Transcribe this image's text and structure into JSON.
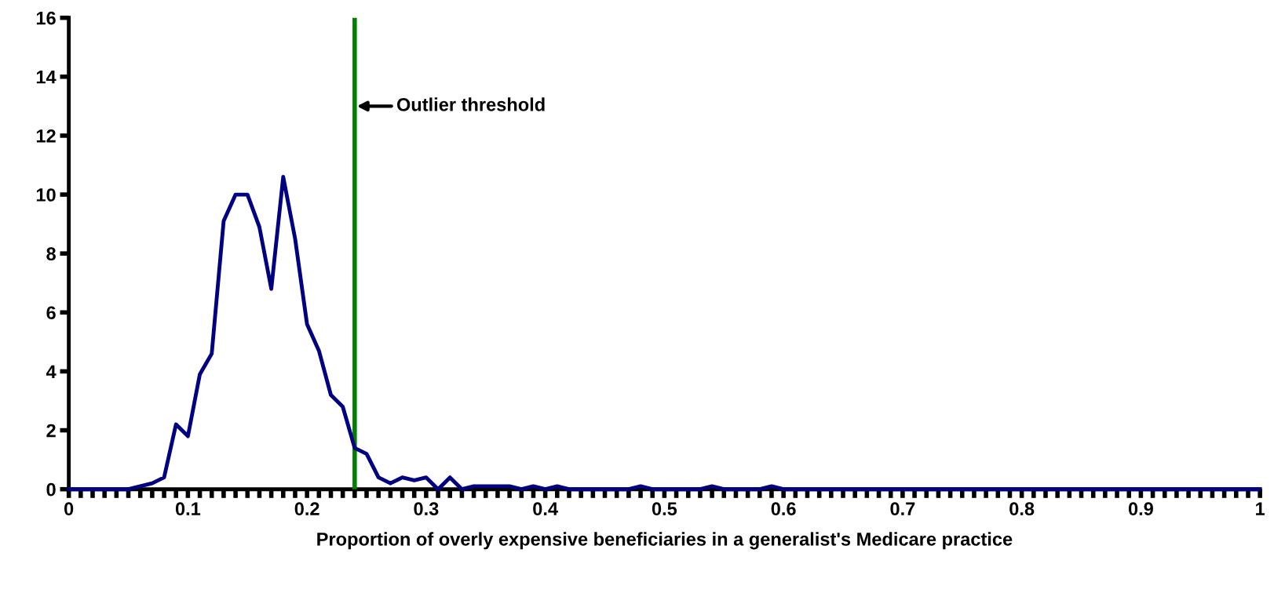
{
  "chart_data": {
    "type": "line",
    "xlabel": "Proportion of overly expensive beneficiaries in a generalist's Medicare practice",
    "x": [
      0,
      0.01,
      0.02,
      0.03,
      0.04,
      0.05,
      0.06,
      0.07,
      0.08,
      0.09,
      0.1,
      0.11,
      0.12,
      0.13,
      0.14,
      0.15,
      0.16,
      0.17,
      0.18,
      0.19,
      0.2,
      0.21,
      0.22,
      0.23,
      0.24,
      0.25,
      0.26,
      0.27,
      0.28,
      0.29,
      0.3,
      0.31,
      0.32,
      0.33,
      0.34,
      0.35,
      0.36,
      0.37,
      0.38,
      0.39,
      0.4,
      0.41,
      0.42,
      0.43,
      0.44,
      0.45,
      0.46,
      0.47,
      0.48,
      0.49,
      0.5,
      0.51,
      0.52,
      0.53,
      0.54,
      0.55,
      0.56,
      0.57,
      0.58,
      0.59,
      0.6,
      0.61,
      0.62,
      0.63,
      0.64,
      0.65,
      0.66,
      0.67,
      0.68,
      0.69,
      0.7,
      0.71,
      0.72,
      0.73,
      0.74,
      0.75,
      0.76,
      0.77,
      0.78,
      0.79,
      0.8,
      0.81,
      0.82,
      0.83,
      0.84,
      0.85,
      0.86,
      0.87,
      0.88,
      0.89,
      0.9,
      0.91,
      0.92,
      0.93,
      0.94,
      0.95,
      0.96,
      0.97,
      0.98,
      0.99,
      1
    ],
    "series": [
      {
        "color": "#000080",
        "values": [
          0,
          0,
          0,
          0,
          0,
          0,
          0.1,
          0.2,
          0.4,
          2.2,
          1.8,
          3.9,
          4.6,
          9.1,
          10,
          10,
          8.9,
          6.8,
          10.6,
          8.5,
          5.6,
          4.7,
          3.2,
          2.8,
          1.4,
          1.2,
          0.4,
          0.2,
          0.4,
          0.3,
          0.4,
          0,
          0.4,
          0,
          0.1,
          0.1,
          0.1,
          0.1,
          0,
          0.1,
          0,
          0.1,
          0,
          0,
          0,
          0,
          0,
          0,
          0.1,
          0,
          0,
          0,
          0,
          0,
          0.1,
          0,
          0,
          0,
          0,
          0.1,
          0,
          0,
          0,
          0,
          0,
          0,
          0,
          0,
          0,
          0,
          0,
          0,
          0,
          0,
          0,
          0,
          0,
          0,
          0,
          0,
          0,
          0,
          0,
          0,
          0,
          0,
          0,
          0,
          0,
          0,
          0,
          0,
          0,
          0,
          0,
          0,
          0,
          0,
          0,
          0,
          0
        ]
      }
    ],
    "xlim": [
      0,
      1
    ],
    "ylim": [
      0,
      16
    ],
    "yticks": [
      0,
      2,
      4,
      6,
      8,
      10,
      12,
      14,
      16
    ],
    "xticks": [
      0,
      {
        "value": 0.01,
        "label": null
      },
      {
        "value": 0.02,
        "label": null
      },
      {
        "value": 0.03,
        "label": null
      },
      {
        "value": 0.04,
        "label": null
      },
      {
        "value": 0.05,
        "label": null
      },
      {
        "value": 0.06,
        "label": null
      },
      {
        "value": 0.07,
        "label": null
      },
      {
        "value": 0.08,
        "label": null
      },
      {
        "value": 0.09,
        "label": null
      },
      0.1,
      {
        "value": 0.11,
        "label": null
      },
      {
        "value": 0.12,
        "label": null
      },
      {
        "value": 0.13,
        "label": null
      },
      {
        "value": 0.14,
        "label": null
      },
      {
        "value": 0.15,
        "label": null
      },
      {
        "value": 0.16,
        "label": null
      },
      {
        "value": 0.17,
        "label": null
      },
      {
        "value": 0.18,
        "label": null
      },
      {
        "value": 0.19,
        "label": null
      },
      0.2,
      {
        "value": 0.21,
        "label": null
      },
      {
        "value": 0.22,
        "label": null
      },
      {
        "value": 0.23,
        "label": null
      },
      {
        "value": 0.24,
        "label": null
      },
      {
        "value": 0.25,
        "label": null
      },
      {
        "value": 0.26,
        "label": null
      },
      {
        "value": 0.27,
        "label": null
      },
      {
        "value": 0.28,
        "label": null
      },
      {
        "value": 0.29,
        "label": null
      },
      0.3,
      {
        "value": 0.31,
        "label": null
      },
      {
        "value": 0.32,
        "label": null
      },
      {
        "value": 0.33,
        "label": null
      },
      {
        "value": 0.34,
        "label": null
      },
      {
        "value": 0.35,
        "label": null
      },
      {
        "value": 0.36,
        "label": null
      },
      {
        "value": 0.37,
        "label": null
      },
      {
        "value": 0.38,
        "label": null
      },
      {
        "value": 0.39,
        "label": null
      },
      0.4,
      {
        "value": 0.41,
        "label": null
      },
      {
        "value": 0.42,
        "label": null
      },
      {
        "value": 0.43,
        "label": null
      },
      {
        "value": 0.44,
        "label": null
      },
      {
        "value": 0.45,
        "label": null
      },
      {
        "value": 0.46,
        "label": null
      },
      {
        "value": 0.47,
        "label": null
      },
      {
        "value": 0.48,
        "label": null
      },
      {
        "value": 0.49,
        "label": null
      },
      0.5,
      {
        "value": 0.51,
        "label": null
      },
      {
        "value": 0.52,
        "label": null
      },
      {
        "value": 0.53,
        "label": null
      },
      {
        "value": 0.54,
        "label": null
      },
      {
        "value": 0.55,
        "label": null
      },
      {
        "value": 0.56,
        "label": null
      },
      {
        "value": 0.57,
        "label": null
      },
      {
        "value": 0.58,
        "label": null
      },
      {
        "value": 0.59,
        "label": null
      },
      0.6,
      {
        "value": 0.61,
        "label": null
      },
      {
        "value": 0.62,
        "label": null
      },
      {
        "value": 0.63,
        "label": null
      },
      {
        "value": 0.64,
        "label": null
      },
      {
        "value": 0.65,
        "label": null
      },
      {
        "value": 0.66,
        "label": null
      },
      {
        "value": 0.67,
        "label": null
      },
      {
        "value": 0.68,
        "label": null
      },
      {
        "value": 0.69,
        "label": null
      },
      0.7,
      {
        "value": 0.71,
        "label": null
      },
      {
        "value": 0.72,
        "label": null
      },
      {
        "value": 0.73,
        "label": null
      },
      {
        "value": 0.74,
        "label": null
      },
      {
        "value": 0.75,
        "label": null
      },
      {
        "value": 0.76,
        "label": null
      },
      {
        "value": 0.77,
        "label": null
      },
      {
        "value": 0.78,
        "label": null
      },
      {
        "value": 0.79,
        "label": null
      },
      0.8,
      {
        "value": 0.81,
        "label": null
      },
      {
        "value": 0.82,
        "label": null
      },
      {
        "value": 0.83,
        "label": null
      },
      {
        "value": 0.84,
        "label": null
      },
      {
        "value": 0.85,
        "label": null
      },
      {
        "value": 0.86,
        "label": null
      },
      {
        "value": 0.87,
        "label": null
      },
      {
        "value": 0.88,
        "label": null
      },
      {
        "value": 0.89,
        "label": null
      },
      0.9,
      {
        "value": 0.91,
        "label": null
      },
      {
        "value": 0.92,
        "label": null
      },
      {
        "value": 0.93,
        "label": null
      },
      {
        "value": 0.94,
        "label": null
      },
      {
        "value": 0.95,
        "label": null
      },
      {
        "value": 0.96,
        "label": null
      },
      {
        "value": 0.97,
        "label": null
      },
      {
        "value": 0.98,
        "label": null
      },
      {
        "value": 0.99,
        "label": null
      },
      1
    ],
    "ref_lines": [
      {
        "axis": "x",
        "value": 0.24,
        "label": "Outlier threshold",
        "color": "#008000"
      }
    ],
    "grid": false,
    "marker": "none",
    "line_style": "solid"
  }
}
